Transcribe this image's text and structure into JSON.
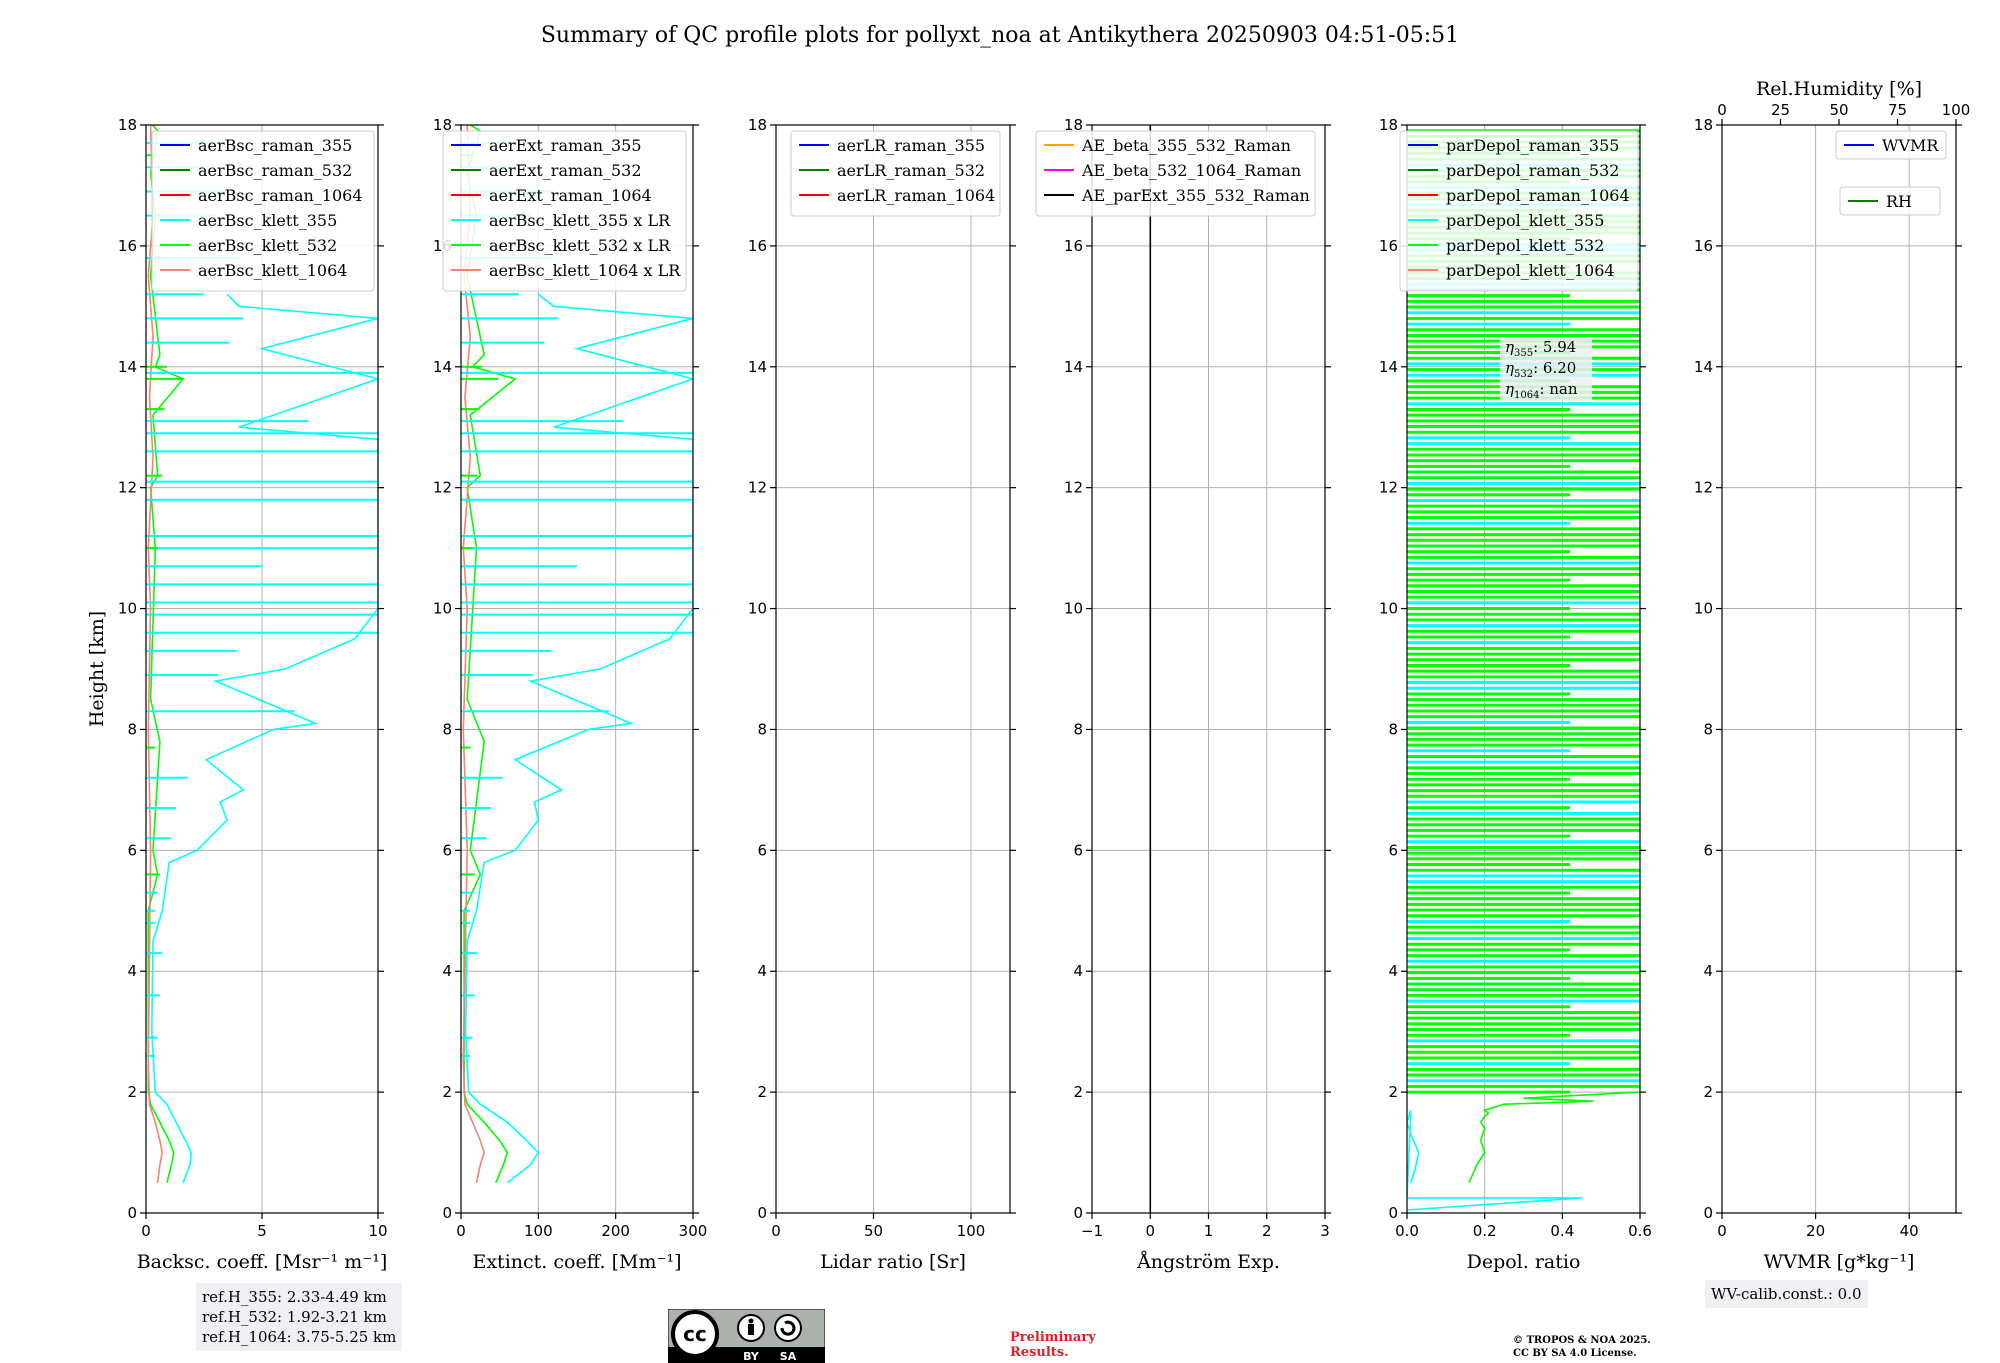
{
  "title": "Summary of QC profile plots for pollyxt_noa at Antikythera 20250903 04:51-05:51",
  "colors": {
    "blue": "#0000ff",
    "green": "#008000",
    "red": "#ff0000",
    "cyan": "#00ffff",
    "lime": "#00ff00",
    "salmon": "#fa8072",
    "orange": "#ffa500",
    "magenta": "#ff00ff",
    "black": "#000000"
  },
  "chart_data": [
    {
      "type": "line",
      "ylabel": "Height [km]",
      "ylim": [
        0,
        18
      ],
      "yticks": [
        "0",
        "2",
        "4",
        "6",
        "8",
        "10",
        "12",
        "14",
        "16",
        "18"
      ],
      "xlabel": "Backsc. coeff. [Msr⁻¹ m⁻¹]",
      "xlim": [
        0,
        10
      ],
      "xticks": [
        "0",
        "5",
        "10"
      ],
      "legend": [
        "aerBsc_raman_355",
        "aerBsc_raman_532",
        "aerBsc_raman_1064",
        "aerBsc_klett_355",
        "aerBsc_klett_532",
        "aerBsc_klett_1064"
      ],
      "series": [
        {
          "name": "aerBsc_klett_355",
          "color": "cyan",
          "x": [
            1.6,
            1.9,
            1.95,
            1.7,
            1.3,
            0.9,
            0.4,
            0.25,
            0.3,
            0.7,
            1.0,
            2.2,
            3.5,
            3.2,
            4.2,
            2.6,
            5.5,
            7.3,
            3.0,
            6.0,
            9.0,
            10.0,
            10.0,
            10.0,
            10.0,
            10.0,
            10.0,
            4.0,
            10.0,
            5.0,
            10.0,
            4.0,
            3.5
          ],
          "y": [
            0.5,
            0.8,
            1.0,
            1.2,
            1.5,
            1.8,
            2.0,
            3.0,
            4.5,
            5.0,
            5.8,
            6.0,
            6.5,
            6.8,
            7.0,
            7.5,
            8.0,
            8.1,
            8.8,
            9.0,
            9.5,
            10.0,
            10.5,
            11.0,
            11.8,
            12.2,
            12.8,
            13.0,
            13.8,
            14.3,
            14.8,
            15.0,
            15.2
          ]
        },
        {
          "name": "aerBsc_klett_532",
          "color": "lime",
          "x": [
            0.9,
            1.1,
            1.2,
            1.0,
            0.6,
            0.2,
            0.1,
            0.1,
            0.5,
            0.3,
            0.6,
            0.2,
            0.4,
            0.2,
            0.5,
            0.3,
            1.6,
            0.4,
            0.6,
            0.2,
            0.4,
            0.2,
            0.5,
            0.3
          ],
          "y": [
            0.5,
            0.8,
            1.0,
            1.2,
            1.5,
            1.8,
            2.0,
            5.0,
            5.6,
            6.0,
            7.8,
            8.5,
            11.0,
            12.0,
            12.2,
            13.2,
            13.8,
            14.0,
            14.2,
            15.5,
            16.5,
            17.2,
            17.9,
            18.0
          ]
        },
        {
          "name": "aerBsc_klett_1064",
          "color": "salmon",
          "x": [
            0.5,
            0.6,
            0.7,
            0.6,
            0.4,
            0.15,
            0.1,
            0.2,
            0.1,
            0.2,
            0.1,
            0.3,
            0.15,
            0.3,
            0.1,
            0.3,
            0.2
          ],
          "y": [
            0.5,
            0.8,
            1.0,
            1.2,
            1.5,
            1.8,
            2.5,
            6.0,
            8.0,
            10.0,
            11.0,
            12.5,
            13.5,
            14.5,
            15.5,
            16.5,
            18.0
          ]
        }
      ]
    },
    {
      "type": "line",
      "ylim": [
        0,
        18
      ],
      "xlabel": "Extinct. coeff. [Mm⁻¹]",
      "xlim": [
        0,
        300
      ],
      "xticks": [
        "0",
        "100",
        "200",
        "300"
      ],
      "legend": [
        "aerExt_raman_355",
        "aerExt_raman_532",
        "aerExt_raman_1064",
        "aerBsc_klett_355 x LR",
        "aerBsc_klett_532 x LR",
        "aerBsc_klett_1064 x LR"
      ],
      "series": [
        {
          "name": "aerBsc_klett_355 x LR",
          "color": "cyan",
          "x": [
            60,
            90,
            100,
            85,
            60,
            25,
            10,
            6,
            8,
            20,
            30,
            70,
            100,
            95,
            130,
            70,
            165,
            220,
            90,
            180,
            270,
            300,
            300,
            300,
            300,
            300,
            300,
            120,
            300,
            150,
            300,
            120,
            100
          ],
          "y": [
            0.5,
            0.8,
            1.0,
            1.2,
            1.5,
            1.8,
            2.0,
            3.0,
            4.5,
            5.0,
            5.8,
            6.0,
            6.5,
            6.8,
            7.0,
            7.5,
            8.0,
            8.1,
            8.8,
            9.0,
            9.5,
            10.0,
            10.5,
            11.0,
            11.8,
            12.2,
            12.8,
            13.0,
            13.8,
            14.3,
            14.8,
            15.0,
            15.2
          ]
        },
        {
          "name": "aerBsc_klett_532 x LR",
          "color": "lime",
          "x": [
            45,
            55,
            60,
            50,
            30,
            8,
            4,
            4,
            25,
            12,
            30,
            8,
            20,
            8,
            25,
            12,
            70,
            15,
            30,
            8,
            20,
            8,
            25,
            12
          ],
          "y": [
            0.5,
            0.8,
            1.0,
            1.2,
            1.5,
            1.8,
            2.0,
            5.0,
            5.6,
            6.0,
            7.8,
            8.5,
            11.0,
            12.0,
            12.2,
            13.2,
            13.8,
            14.0,
            14.2,
            15.5,
            16.5,
            17.2,
            17.9,
            18.0
          ]
        },
        {
          "name": "aerBsc_klett_1064 x LR",
          "color": "salmon",
          "x": [
            20,
            25,
            30,
            25,
            15,
            5,
            3,
            8,
            3,
            8,
            3,
            12,
            5,
            12,
            4,
            12,
            8
          ],
          "y": [
            0.5,
            0.8,
            1.0,
            1.2,
            1.5,
            1.8,
            2.5,
            6.0,
            8.0,
            10.0,
            11.0,
            12.5,
            13.5,
            14.5,
            15.5,
            16.5,
            18.0
          ]
        }
      ]
    },
    {
      "type": "line",
      "ylim": [
        0,
        18
      ],
      "xlabel": "Lidar ratio [Sr]",
      "xlim": [
        0,
        120
      ],
      "xticks": [
        "0",
        "50",
        "100"
      ],
      "legend": [
        "aerLR_raman_355",
        "aerLR_raman_532",
        "aerLR_raman_1064"
      ],
      "series": []
    },
    {
      "type": "line",
      "ylim": [
        0,
        18
      ],
      "xlabel": "Ångström Exp.",
      "xlim": [
        -1,
        3
      ],
      "xticks": [
        "−1",
        "0",
        "1",
        "2",
        "3"
      ],
      "legend": [
        "AE_beta_355_532_Raman",
        "AE_beta_532_1064_Raman",
        "AE_parExt_355_532_Raman"
      ],
      "series": [
        {
          "name": "AE_parExt_355_532_Raman",
          "color": "black",
          "x": [
            0,
            0
          ],
          "y": [
            0,
            18
          ]
        }
      ]
    },
    {
      "type": "line",
      "ylim": [
        0,
        18
      ],
      "xlabel": "Depol. ratio",
      "xlim": [
        0,
        0.6
      ],
      "xticks": [
        "0.0",
        "0.2",
        "0.4",
        "0.6"
      ],
      "legend": [
        "parDepol_raman_355",
        "parDepol_raman_532",
        "parDepol_raman_1064",
        "parDepol_klett_355",
        "parDepol_klett_532",
        "parDepol_klett_1064"
      ],
      "annotations": [
        "5.94",
        "6.20",
        "nan"
      ],
      "series": [
        {
          "name": "parDepol_klett_532",
          "color": "lime",
          "x": [
            0.16,
            0.18,
            0.2,
            0.19,
            0.2,
            0.19,
            0.2,
            0.21,
            0.2,
            0.25,
            0.48,
            0.3,
            0.6
          ],
          "y": [
            0.5,
            0.8,
            1.0,
            1.2,
            1.4,
            1.5,
            1.6,
            1.65,
            1.7,
            1.8,
            1.85,
            1.9,
            2.0
          ]
        },
        {
          "name": "parDepol_klett_355",
          "color": "cyan",
          "x": [
            0.01,
            0.02,
            0.03,
            0.01,
            0.0,
            0.01,
            0.0,
            0.45,
            0.0
          ],
          "y": [
            0.5,
            0.7,
            1.0,
            1.3,
            1.5,
            1.7,
            0.25,
            0.25,
            0.05
          ]
        }
      ]
    },
    {
      "type": "line",
      "ylim": [
        0,
        18
      ],
      "xlabel": "WVMR [g*kg⁻¹]",
      "xlim": [
        0,
        50
      ],
      "xticks": [
        "0",
        "20",
        "40"
      ],
      "x2label": "Rel.Humidity [%]",
      "x2lim": [
        0,
        100
      ],
      "x2ticks": [
        "0",
        "25",
        "50",
        "75",
        "100"
      ],
      "legend": [
        "WVMR",
        "RH"
      ],
      "series": []
    }
  ],
  "annotations": {
    "refh_355": "ref.H_355: 2.33-4.49 km",
    "refh_532": "ref.H_532: 1.92-3.21 km",
    "refh_1064": "ref.H_1064: 3.75-5.25 km",
    "wv_calib": "WV-calib.const.: 0.0",
    "prelim_1": "Preliminary",
    "prelim_2": "Results.",
    "copyright_1": "© TROPOS & NOA 2025.",
    "copyright_2": "CC BY SA 4.0 License.",
    "license_badge": [
      "BY",
      "SA"
    ]
  }
}
